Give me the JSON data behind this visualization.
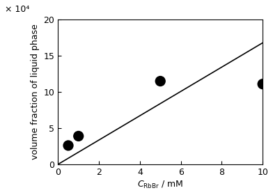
{
  "scatter_x": [
    0.5,
    1.0,
    5.0,
    10.0
  ],
  "scatter_y": [
    2.6,
    3.9,
    11.5,
    11.1
  ],
  "line_x": [
    0.0,
    10.0
  ],
  "line_y": [
    0.0,
    16.8
  ],
  "xlabel_unit": " / mM",
  "ylabel_main": "volume fraction of liquid phase",
  "ylabel_exp": "× 10⁴",
  "xlim": [
    0,
    10
  ],
  "ylim": [
    0,
    20
  ],
  "xticks": [
    0,
    2,
    4,
    6,
    8,
    10
  ],
  "yticks": [
    0,
    5,
    10,
    15,
    20
  ],
  "marker_size": 11,
  "marker_color": "black",
  "line_color": "black",
  "line_width": 1.2,
  "background_color": "#ffffff",
  "tick_fontsize": 9,
  "label_fontsize": 9
}
